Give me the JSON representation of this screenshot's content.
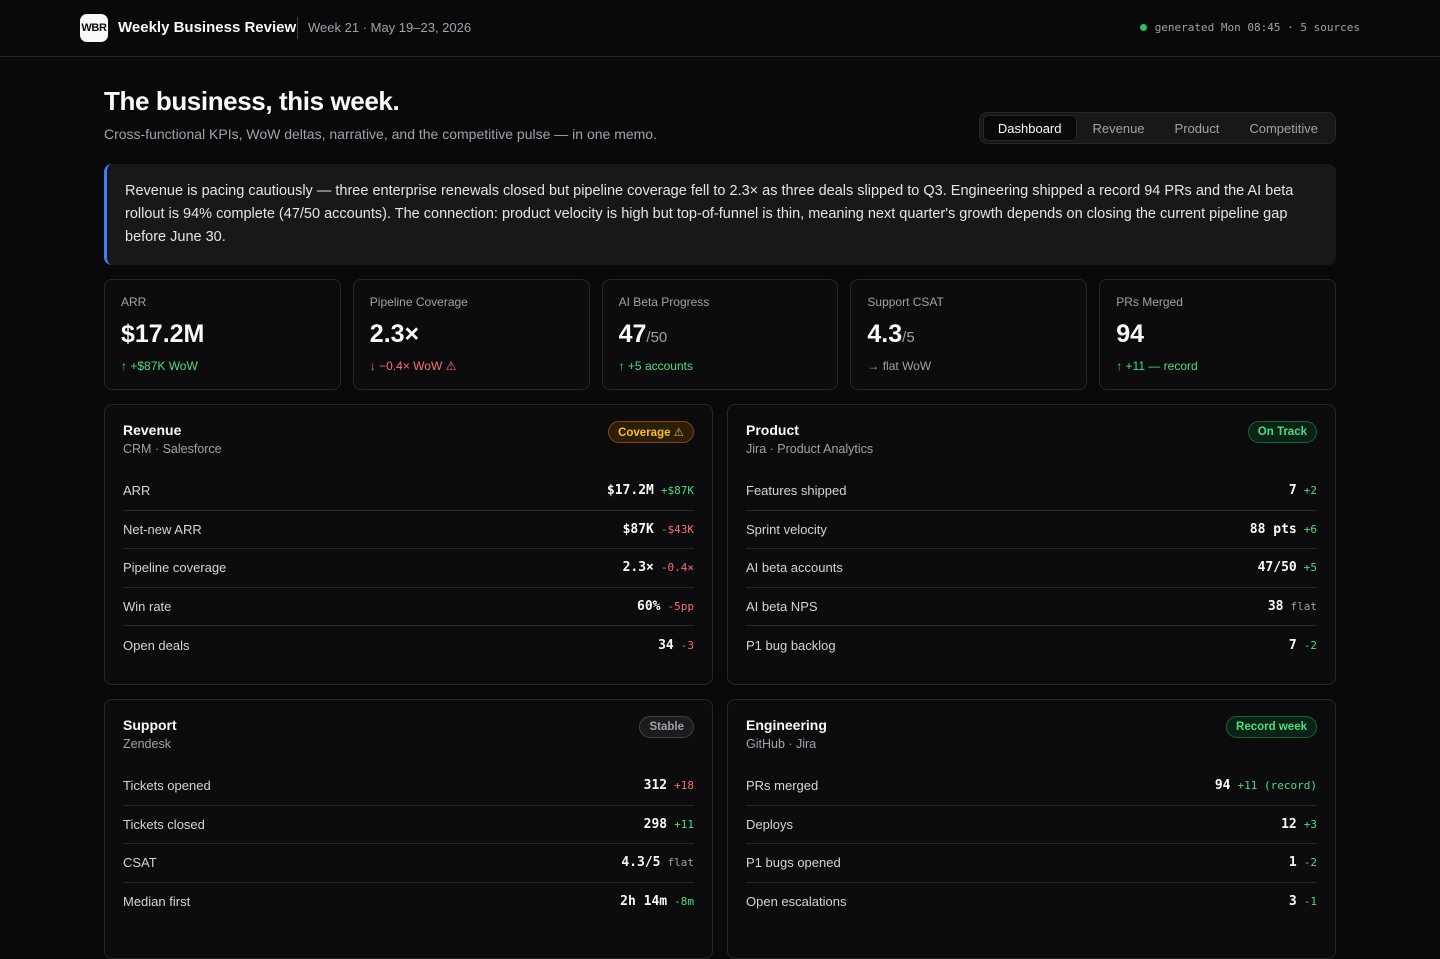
{
  "topbar": {
    "logo_text": "WBR",
    "app_title": "Weekly Business Review",
    "week": "Week 21 · May 19–23, 2026",
    "status": "generated Mon 08:45 · 5 sources",
    "status_color": "#22c55e"
  },
  "header": {
    "title": "The business, this week.",
    "subtitle": "Cross-functional KPIs, WoW deltas, narrative, and the competitive pulse — in one memo.",
    "tabs": [
      {
        "label": "Dashboard",
        "active": true
      },
      {
        "label": "Revenue",
        "active": false
      },
      {
        "label": "Product",
        "active": false
      },
      {
        "label": "Competitive",
        "active": false
      }
    ]
  },
  "narrative": "Revenue is pacing cautiously — three enterprise renewals closed but pipeline coverage fell to 2.3× as three deals slipped to Q3. Engineering shipped a record 94 PRs and the AI beta rollout is 94% complete (47/50 accounts). The connection: product velocity is high but top-of-funnel is thin, meaning next quarter's growth depends on closing the current pipeline gap before June 30.",
  "kpis": [
    {
      "label": "ARR",
      "value": "$17.2M",
      "unit": "",
      "delta": "↑ +$87K WoW",
      "trend": "up"
    },
    {
      "label": "Pipeline Coverage",
      "value": "2.3×",
      "unit": "",
      "delta": "↓ −0.4× WoW ⚠",
      "trend": "down"
    },
    {
      "label": "AI Beta Progress",
      "value": "47",
      "unit": "/50",
      "delta": "↑ +5 accounts",
      "trend": "up"
    },
    {
      "label": "Support CSAT",
      "value": "4.3",
      "unit": "/5",
      "delta": "→ flat WoW",
      "trend": "flat"
    },
    {
      "label": "PRs Merged",
      "value": "94",
      "unit": "",
      "delta": "↑ +11 — record",
      "trend": "up"
    }
  ],
  "panels": {
    "revenue": {
      "title": "Revenue",
      "source": "CRM · Salesforce",
      "badge": "Coverage ⚠",
      "rows": [
        {
          "label": "ARR",
          "value": "$17.2M",
          "delta": "+$87K",
          "trend": "up"
        },
        {
          "label": "Net-new ARR",
          "value": "$87K",
          "delta": "-$43K",
          "trend": "down"
        },
        {
          "label": "Pipeline coverage",
          "value": "2.3×",
          "delta": "-0.4×",
          "trend": "down"
        },
        {
          "label": "Win rate",
          "value": "60%",
          "delta": "-5pp",
          "trend": "down"
        },
        {
          "label": "Open deals",
          "value": "34",
          "delta": "-3",
          "trend": "down"
        }
      ]
    },
    "product": {
      "title": "Product",
      "source": "Jira · Product Analytics",
      "badge": "On Track",
      "rows": [
        {
          "label": "Features shipped",
          "value": "7",
          "delta": "+2",
          "trend": "up"
        },
        {
          "label": "Sprint velocity",
          "value": "88 pts",
          "delta": "+6",
          "trend": "up"
        },
        {
          "label": "AI beta accounts",
          "value": "47/50",
          "delta": "+5",
          "trend": "up"
        },
        {
          "label": "AI beta NPS",
          "value": "38",
          "delta": "flat",
          "trend": "flat"
        },
        {
          "label": "P1 bug backlog",
          "value": "7",
          "delta": "-2",
          "trend": "up"
        }
      ]
    },
    "support": {
      "title": "Support",
      "source": "Zendesk",
      "badge": "Stable",
      "rows": [
        {
          "label": "Tickets opened",
          "value": "312",
          "delta": "+18",
          "trend": "down"
        },
        {
          "label": "Tickets closed",
          "value": "298",
          "delta": "+11",
          "trend": "up"
        },
        {
          "label": "CSAT",
          "value": "4.3/5",
          "delta": "flat",
          "trend": "flat"
        },
        {
          "label": "Median first",
          "value": "2h 14m",
          "delta": "-8m",
          "trend": "up"
        }
      ]
    },
    "engineering": {
      "title": "Engineering",
      "source": "GitHub · Jira",
      "badge": "Record week",
      "rows": [
        {
          "label": "PRs merged",
          "value": "94",
          "delta": "+11 (record)",
          "trend": "up"
        },
        {
          "label": "Deploys",
          "value": "12",
          "delta": "+3",
          "trend": "up"
        },
        {
          "label": "P1 bugs opened",
          "value": "1",
          "delta": "-2",
          "trend": "up"
        },
        {
          "label": "Open escalations",
          "value": "3",
          "delta": "-1",
          "trend": "up"
        }
      ]
    }
  },
  "colors": {
    "accent": "#3b82f6",
    "up": "#4ade80",
    "down": "#f87171",
    "warn": "#fbbf24"
  }
}
